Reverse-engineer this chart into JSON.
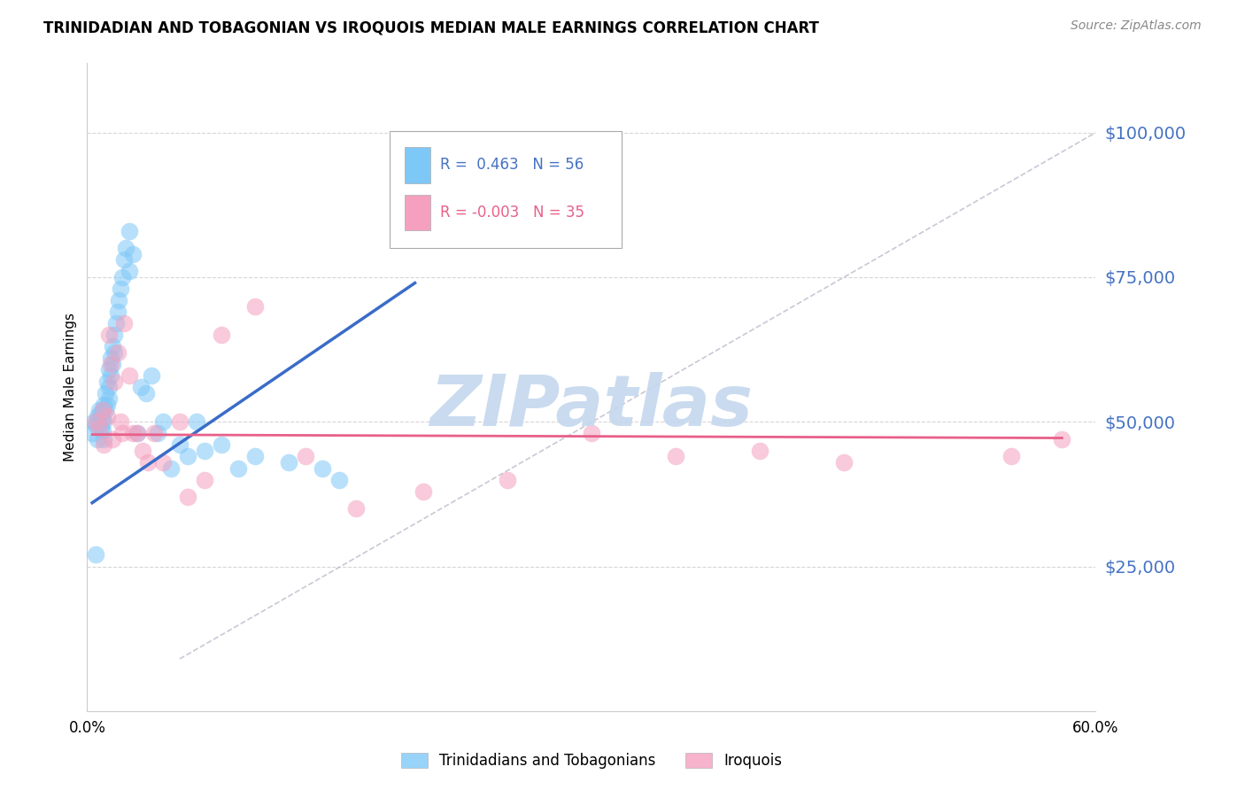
{
  "title": "TRINIDADIAN AND TOBAGONIAN VS IROQUOIS MEDIAN MALE EARNINGS CORRELATION CHART",
  "source": "Source: ZipAtlas.com",
  "ylabel": "Median Male Earnings",
  "xlim": [
    0.0,
    0.6
  ],
  "ylim": [
    0,
    112000
  ],
  "yticks": [
    25000,
    50000,
    75000,
    100000
  ],
  "ytick_labels": [
    "$25,000",
    "$50,000",
    "$75,000",
    "$100,000"
  ],
  "xtick_pos": [
    0.0,
    0.6
  ],
  "xtick_labels": [
    "0.0%",
    "60.0%"
  ],
  "legend_label_blue": "Trinidadians and Tobagonians",
  "legend_label_pink": "Iroquois",
  "blue_color": "#7EC8F8",
  "pink_color": "#F4A0BE",
  "blue_line_color": "#3A6CC8",
  "pink_line_color": "#E8608A",
  "diag_line_color": "#BBBBCC",
  "axis_label_color": "#4472C4",
  "grid_color": "#CCCCCC",
  "watermark": "ZIPatlas",
  "watermark_color": "#C5D8EE",
  "blue_points_x": [
    0.003,
    0.004,
    0.005,
    0.006,
    0.006,
    0.007,
    0.007,
    0.008,
    0.008,
    0.009,
    0.009,
    0.009,
    0.01,
    0.01,
    0.01,
    0.011,
    0.011,
    0.012,
    0.012,
    0.013,
    0.013,
    0.013,
    0.014,
    0.014,
    0.015,
    0.015,
    0.016,
    0.016,
    0.017,
    0.018,
    0.019,
    0.02,
    0.021,
    0.022,
    0.023,
    0.025,
    0.025,
    0.027,
    0.03,
    0.032,
    0.035,
    0.038,
    0.042,
    0.045,
    0.05,
    0.055,
    0.06,
    0.065,
    0.07,
    0.08,
    0.09,
    0.1,
    0.12,
    0.14,
    0.15,
    0.005
  ],
  "blue_points_y": [
    48000,
    50000,
    49500,
    51000,
    47000,
    52000,
    50000,
    51500,
    49000,
    50500,
    52000,
    48500,
    53000,
    50000,
    47000,
    55000,
    52000,
    57000,
    53000,
    59000,
    56000,
    54000,
    61000,
    58000,
    63000,
    60000,
    65000,
    62000,
    67000,
    69000,
    71000,
    73000,
    75000,
    78000,
    80000,
    83000,
    76000,
    79000,
    48000,
    56000,
    55000,
    58000,
    48000,
    50000,
    42000,
    46000,
    44000,
    50000,
    45000,
    46000,
    42000,
    44000,
    43000,
    42000,
    40000,
    27000
  ],
  "pink_points_x": [
    0.005,
    0.007,
    0.009,
    0.01,
    0.012,
    0.013,
    0.014,
    0.015,
    0.016,
    0.018,
    0.02,
    0.021,
    0.022,
    0.025,
    0.027,
    0.03,
    0.033,
    0.036,
    0.04,
    0.045,
    0.055,
    0.06,
    0.07,
    0.08,
    0.1,
    0.13,
    0.16,
    0.2,
    0.25,
    0.3,
    0.35,
    0.4,
    0.45,
    0.55,
    0.58
  ],
  "pink_points_y": [
    50000,
    49000,
    52000,
    46000,
    51000,
    65000,
    60000,
    47000,
    57000,
    62000,
    50000,
    48000,
    67000,
    58000,
    48000,
    48000,
    45000,
    43000,
    48000,
    43000,
    50000,
    37000,
    40000,
    65000,
    70000,
    44000,
    35000,
    38000,
    40000,
    48000,
    44000,
    45000,
    43000,
    44000,
    47000
  ],
  "blue_line_x": [
    0.003,
    0.195
  ],
  "blue_line_y": [
    36000,
    74000
  ],
  "pink_line_x": [
    0.003,
    0.58
  ],
  "pink_line_y": [
    47800,
    47200
  ],
  "diag_line_x": [
    0.055,
    0.6
  ],
  "diag_line_y": [
    9000,
    100000
  ]
}
